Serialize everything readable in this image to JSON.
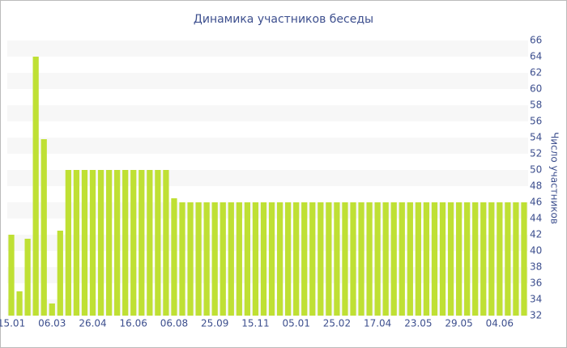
{
  "chart_data": {
    "type": "bar",
    "title": "Динамика участников беседы",
    "y_label": "Число участников",
    "categories": [
      "15.01",
      null,
      null,
      null,
      null,
      "06.03",
      null,
      null,
      null,
      null,
      "26.04",
      null,
      null,
      null,
      null,
      "16.06",
      null,
      null,
      null,
      null,
      "06.08",
      null,
      null,
      null,
      null,
      "25.09",
      null,
      null,
      null,
      null,
      "15.11",
      null,
      null,
      null,
      null,
      "05.01",
      null,
      null,
      null,
      null,
      "25.02",
      null,
      null,
      null,
      null,
      "17.04",
      null,
      null,
      null,
      null,
      "23.05",
      null,
      null,
      null,
      null,
      "29.05",
      null,
      null,
      null,
      null,
      "04.06",
      null,
      null,
      null
    ],
    "values": [
      42,
      35,
      41.5,
      64,
      53.8,
      33.5,
      42.5,
      50,
      50,
      50,
      50,
      50,
      50,
      50,
      50,
      50,
      50,
      50,
      50,
      50,
      46.5,
      46,
      46,
      46,
      46,
      46,
      46,
      46,
      46,
      46,
      46,
      46,
      46,
      46,
      46,
      46,
      46,
      46,
      46,
      46,
      46,
      46,
      46,
      46,
      46,
      46,
      46,
      46,
      46,
      46,
      46,
      46,
      46,
      46,
      46,
      46,
      46,
      46,
      46,
      46,
      46,
      46,
      46,
      46
    ],
    "color": "#bfe034",
    "ylim": [
      32,
      66
    ],
    "yticks": [
      32,
      34,
      36,
      38,
      40,
      42,
      44,
      46,
      48,
      50,
      52,
      54,
      56,
      58,
      60,
      62,
      64,
      66
    ],
    "grid": "bands",
    "y_axis_side": "right"
  }
}
